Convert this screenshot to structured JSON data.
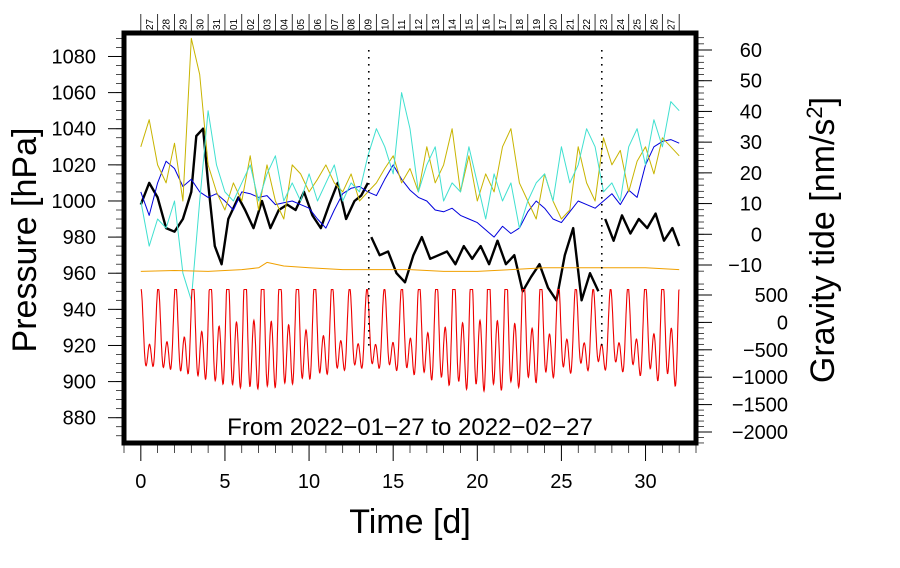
{
  "chart_data": {
    "type": "line",
    "caption": "From 2022−01−27 to 2022−02−27",
    "xlabel": "Time [d]",
    "ylabel_left": "Pressure [hPa]",
    "ylabel_right_prefix": "Gravity tide [nm/s",
    "ylabel_right_sup": "2",
    "ylabel_right_suffix": "]",
    "xlim": [
      -1,
      33
    ],
    "x_ticks": [
      "0",
      "5",
      "10",
      "15",
      "20",
      "25",
      "30"
    ],
    "x_tick_values": [
      0,
      5,
      10,
      15,
      20,
      25,
      30
    ],
    "date_labels": [
      "27",
      "28",
      "29",
      "30",
      "31",
      "01",
      "02",
      "03",
      "04",
      "05",
      "06",
      "07",
      "08",
      "09",
      "10",
      "11",
      "12",
      "13",
      "14",
      "15",
      "16",
      "17",
      "18",
      "19",
      "20",
      "21",
      "22",
      "23",
      "24",
      "25",
      "26",
      "27"
    ],
    "left_axis": {
      "ylim": [
        866,
        1093
      ],
      "ticks": [
        "880",
        "900",
        "920",
        "940",
        "960",
        "980",
        "1000",
        "1020",
        "1040",
        "1060",
        "1080"
      ],
      "tick_values": [
        880,
        900,
        920,
        940,
        960,
        980,
        1000,
        1020,
        1040,
        1060,
        1080
      ]
    },
    "right_axis_upper": {
      "range": [
        -13,
        65
      ],
      "ticks": [
        "60",
        "50",
        "40",
        "30",
        "20",
        "10",
        "0",
        "−10"
      ],
      "tick_values": [
        60,
        50,
        40,
        30,
        20,
        10,
        0,
        -10
      ]
    },
    "right_axis_lower": {
      "range": [
        -2200,
        800
      ],
      "ticks": [
        "500",
        "0",
        "−500",
        "−1000",
        "−1500",
        "−2000"
      ],
      "tick_values": [
        500,
        0,
        -500,
        -1000,
        -1500,
        -2000
      ]
    },
    "colors": {
      "pressure": "#000000",
      "blue_series": "#0000dd",
      "olive_series": "#c8b400",
      "turquoise_series": "#40e0d0",
      "orange_series": "#f0a000",
      "red_series": "#ee0000"
    },
    "series": [
      {
        "name": "Pressure",
        "axis": "left",
        "color": "#000000",
        "x": [
          0,
          0.5,
          1,
          1.5,
          2,
          2.5,
          3,
          3.3,
          3.7,
          4,
          4.4,
          4.8,
          5.2,
          5.8,
          6.2,
          6.7,
          7.2,
          7.7,
          8.2,
          8.7,
          9.2,
          9.7,
          10.2,
          10.7,
          11.2,
          11.7,
          12.2,
          12.7,
          13.1,
          13.5
        ],
        "y": [
          998,
          1010,
          1002,
          985,
          983,
          990,
          1005,
          1036,
          1040,
          1010,
          975,
          965,
          990,
          1002,
          995,
          985,
          1000,
          985,
          995,
          998,
          995,
          1005,
          992,
          985,
          998,
          1010,
          990,
          1000,
          1003,
          1010
        ]
      },
      {
        "name": "Pressure",
        "axis": "left",
        "color": "#000000",
        "x": [
          13.7,
          14.2,
          14.7,
          15.2,
          15.7,
          16.2,
          16.7,
          17.2,
          17.7,
          18.2,
          18.7,
          19.2,
          19.7,
          20.2,
          20.7,
          21.2,
          21.7,
          22.2,
          22.7,
          23.2,
          23.7,
          24.2,
          24.7,
          25.2,
          25.7,
          26.2,
          26.7,
          27.2
        ],
        "y": [
          980,
          970,
          972,
          960,
          955,
          970,
          980,
          968,
          970,
          972,
          965,
          975,
          968,
          975,
          965,
          978,
          965,
          970,
          950,
          958,
          965,
          952,
          945,
          970,
          985,
          945,
          960,
          950
        ]
      },
      {
        "name": "Pressure",
        "axis": "left",
        "color": "#000000",
        "x": [
          27.6,
          28.1,
          28.6,
          29.1,
          29.6,
          30.1,
          30.6,
          31.1,
          31.6,
          32
        ],
        "y": [
          990,
          978,
          992,
          982,
          990,
          985,
          993,
          978,
          985,
          975
        ]
      },
      {
        "name": "Blue",
        "axis": "left",
        "color": "#0000dd",
        "x": [
          0,
          0.5,
          1,
          1.5,
          2,
          2.5,
          3,
          3.5,
          4,
          4.5,
          5,
          5.5,
          6,
          6.5,
          7,
          7.5,
          8,
          8.5,
          9,
          9.5,
          10,
          10.5,
          11,
          11.5,
          12,
          12.5,
          13,
          13.5,
          14,
          14.5,
          15,
          15.5,
          16,
          16.5,
          17,
          17.5,
          18,
          18.5,
          19,
          19.5,
          20,
          20.5,
          21,
          21.5,
          22,
          22.5,
          23,
          23.5,
          24,
          24.5,
          25,
          25.5,
          26,
          26.5,
          27,
          27.5,
          28,
          28.5,
          29,
          29.5,
          30,
          30.5,
          31,
          31.5,
          32
        ],
        "y": [
          1005,
          992,
          1010,
          1022,
          1018,
          1008,
          1012,
          1005,
          1002,
          1004,
          1000,
          995,
          1005,
          1004,
          1002,
          1003,
          998,
          999,
          1000,
          998,
          996,
          990,
          985,
          995,
          1004,
          1007,
          1008,
          1005,
          1003,
          1012,
          1020,
          1012,
          1006,
          1002,
          1000,
          995,
          994,
          996,
          992,
          990,
          988,
          984,
          980,
          986,
          982,
          985,
          994,
          1000,
          996,
          990,
          988,
          994,
          1000,
          998,
          996,
          1000,
          1004,
          998,
          1006,
          1002,
          1020,
          1030,
          1033,
          1034,
          1032
        ]
      },
      {
        "name": "Olive",
        "axis": "left",
        "color": "#c8b400",
        "x": [
          0,
          0.5,
          1,
          1.5,
          2,
          2.5,
          3,
          3.5,
          4,
          4.5,
          5,
          5.5,
          6,
          6.5,
          7,
          7.5,
          8,
          8.5,
          9,
          9.5,
          10,
          10.5,
          11,
          11.5,
          12,
          12.5,
          13,
          13.5,
          14,
          14.5,
          15,
          15.5,
          16,
          16.5,
          17,
          17.5,
          18,
          18.5,
          19,
          19.5,
          20,
          20.5,
          21,
          21.5,
          22,
          22.5,
          23,
          23.5,
          24,
          24.5,
          25,
          25.5,
          26,
          26.5,
          27,
          27.5,
          28,
          28.5,
          29,
          29.5,
          30,
          30.5,
          31,
          31.5,
          32
        ],
        "y": [
          1030,
          1045,
          1020,
          1010,
          1032,
          1000,
          1090,
          1070,
          1020,
          1005,
          995,
          1010,
          1000,
          1025,
          995,
          1020,
          1000,
          990,
          1020,
          1015,
          1005,
          1012,
          1020,
          1010,
          1005,
          1015,
          1000,
          1005,
          1010,
          1018,
          1025,
          1010,
          1018,
          1005,
          1030,
          1010,
          1020,
          1040,
          1005,
          1025,
          1000,
          1015,
          1005,
          1030,
          1040,
          1010,
          1000,
          990,
          1015,
          1000,
          990,
          995,
          1030,
          1010,
          1000,
          1035,
          1020,
          1028,
          1005,
          1022,
          1030,
          1015,
          1035,
          1030,
          1025
        ]
      },
      {
        "name": "Turquoise",
        "axis": "left",
        "color": "#40e0d0",
        "x": [
          0,
          0.5,
          1,
          1.5,
          2,
          2.5,
          3,
          3.5,
          4,
          4.5,
          5,
          5.5,
          6,
          6.5,
          7,
          7.5,
          8,
          8.5,
          9,
          9.5,
          10,
          10.5,
          11,
          11.5,
          12,
          12.5,
          13,
          13.5,
          14,
          14.5,
          15,
          15.5,
          16,
          16.5,
          17,
          17.5,
          18,
          18.5,
          19,
          19.5,
          20,
          20.5,
          21,
          21.5,
          22,
          22.5,
          23,
          23.5,
          24,
          24.5,
          25,
          25.5,
          26,
          26.5,
          27,
          27.5,
          28,
          28.5,
          29,
          29.5,
          30,
          30.5,
          31,
          31.5,
          32
        ],
        "y": [
          1000,
          975,
          990,
          985,
          1000,
          960,
          945,
          1000,
          1050,
          1020,
          1005,
          1000,
          1010,
          1020,
          1000,
          1015,
          1025,
          1000,
          1010,
          1000,
          1015,
          1000,
          1010,
          1020,
          1000,
          1010,
          1005,
          1025,
          1040,
          1030,
          1015,
          1060,
          1040,
          1005,
          1020,
          1030,
          1000,
          1010,
          1005,
          1030,
          1010,
          990,
          1015,
          1000,
          1010,
          985,
          1000,
          1010,
          1015,
          1000,
          1030,
          1010,
          1020,
          1040,
          1030,
          1005,
          1010,
          1000,
          1030,
          1040,
          1020,
          1045,
          1030,
          1055,
          1050
        ]
      },
      {
        "name": "Orange",
        "axis": "left",
        "color": "#f0a000",
        "x": [
          0,
          2,
          4,
          6,
          7,
          7.5,
          8.5,
          10,
          12,
          14,
          16,
          18,
          20,
          22,
          24,
          26,
          28,
          30,
          32
        ],
        "y": [
          961,
          961.5,
          961,
          962,
          963,
          966,
          964,
          963,
          962,
          962,
          962,
          961,
          961,
          962,
          963,
          963,
          963,
          963,
          962
        ]
      }
    ],
    "red_tide": {
      "name": "Gravity tide",
      "axis": "right_lower",
      "color": "#ee0000",
      "amplitude": 1150,
      "offset": -300,
      "period_days": 1.035,
      "semi_period_days": 0.517,
      "modulation": 0.35
    }
  }
}
